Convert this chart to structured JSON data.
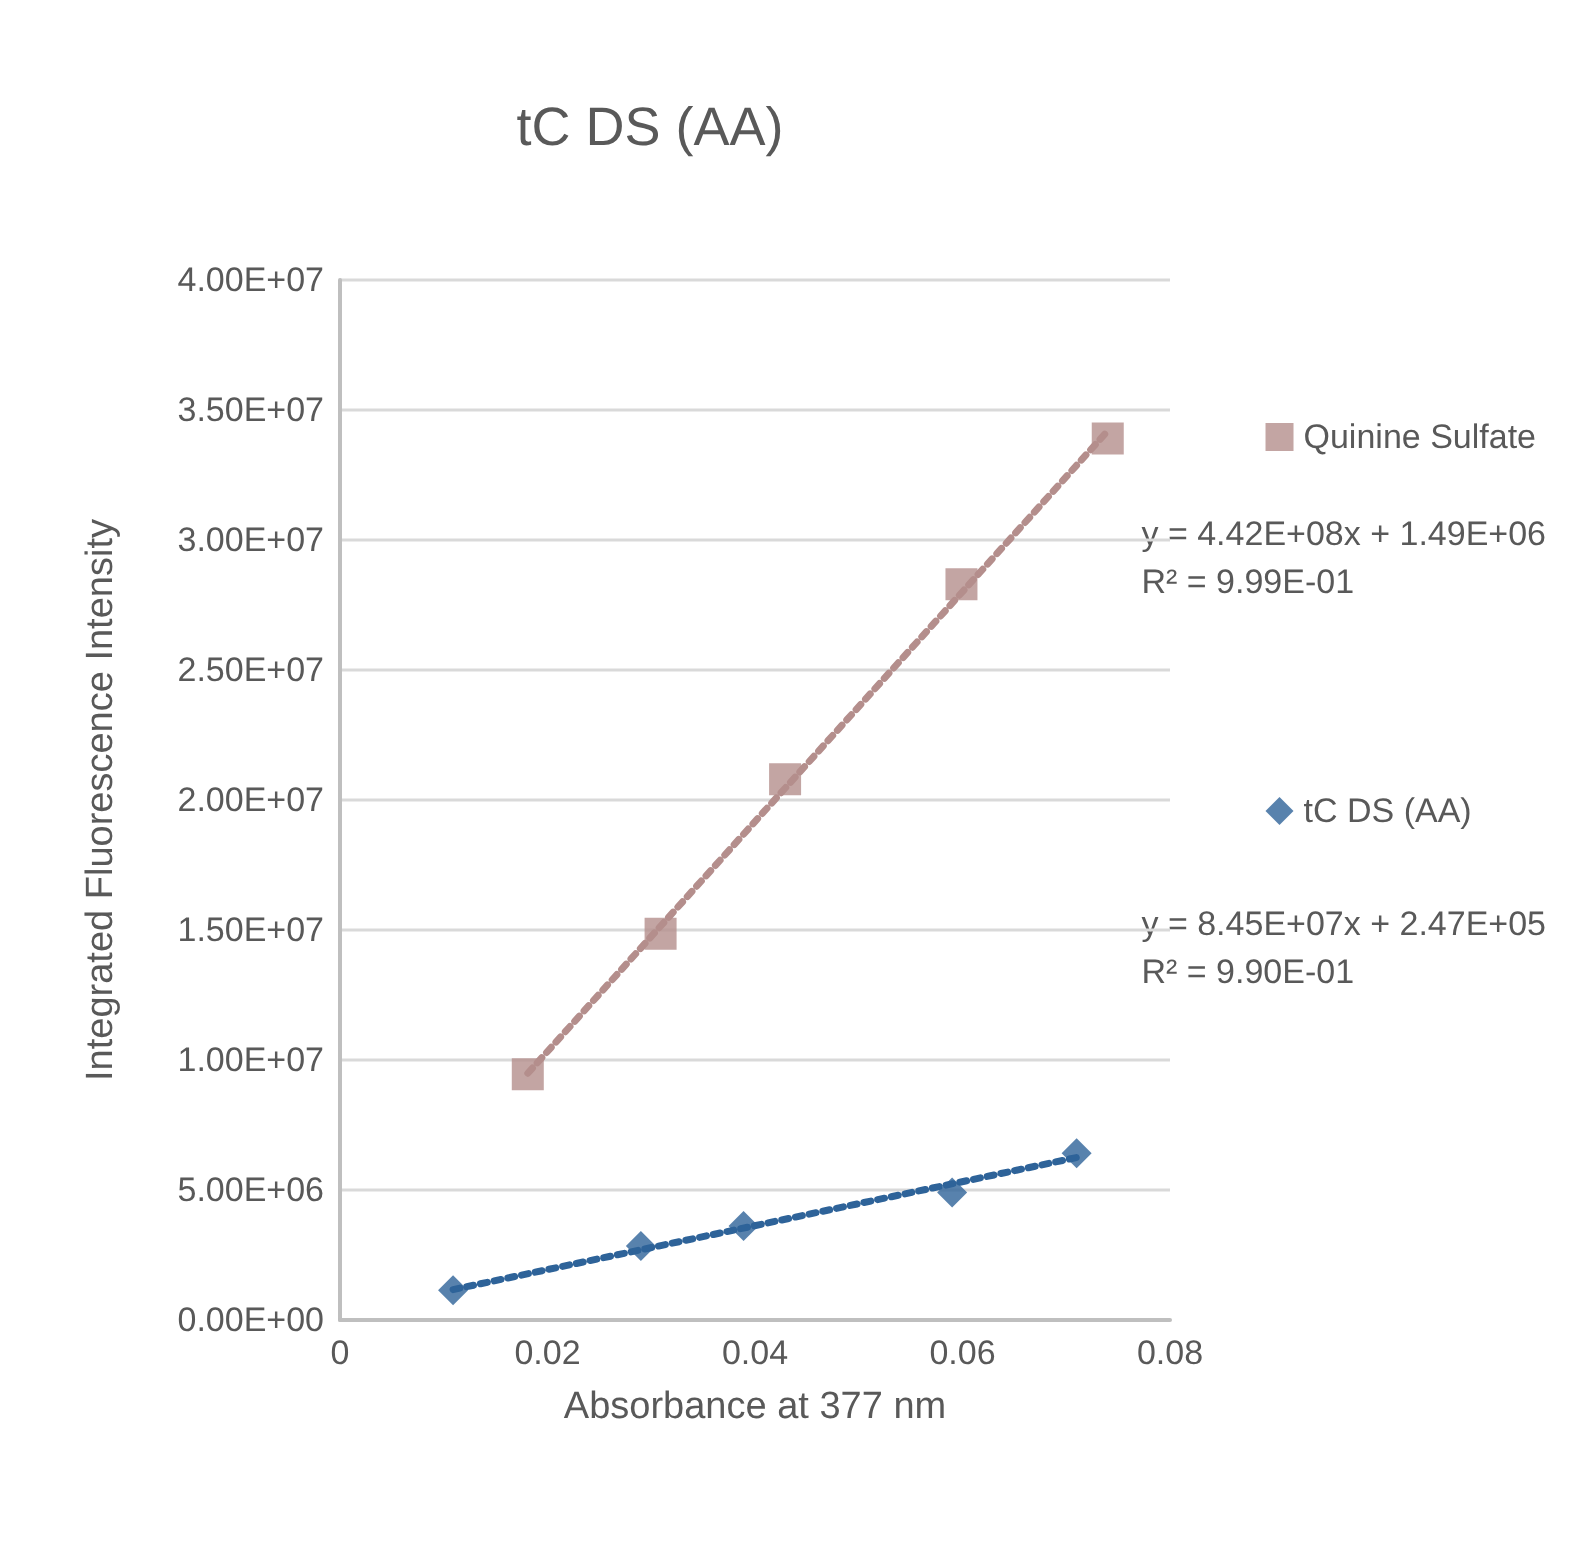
{
  "chart_data": {
    "type": "scatter",
    "title": "tC DS (AA)",
    "xlabel": "Absorbance at 377 nm",
    "ylabel": "Integrated Fluorescence Intensity",
    "series": [
      {
        "name": "Quinine Sulfate",
        "color": "#b48e8c",
        "marker": "square",
        "x": [
          0.0181,
          0.0309,
          0.0429,
          0.0599,
          0.074
        ],
        "values": [
          9450000.0,
          14860000.0,
          20800000.0,
          28300000.0,
          33900000.0
        ]
      },
      {
        "type": "line",
        "color": "#b48e8c",
        "marker": "none",
        "line_style": "dotted",
        "x": [
          0.0181,
          0.074
        ],
        "values": [
          9490000.0,
          34200000.0
        ]
      },
      {
        "name": "tC DS (AA)",
        "color": "#2e6399",
        "marker": "diamond",
        "x": [
          0.0109,
          0.029,
          0.0389,
          0.059,
          0.071
        ],
        "values": [
          1140000.0,
          2850000.0,
          3620000.0,
          4900000.0,
          6410000.0
        ]
      },
      {
        "type": "line",
        "color": "#2e6399",
        "marker": "none",
        "line_style": "dotted",
        "x": [
          0.0109,
          0.071
        ],
        "values": [
          1170000.0,
          6250000.0
        ]
      }
    ],
    "annotations": [
      "y = 4.42E+08x + 1.49E+06\nR² = 9.99E-01",
      "y = 8.45E+07x + 2.47E+05\nR² = 9.90E-01"
    ],
    "xlim": [
      0,
      0.08
    ],
    "xticks": [
      0,
      0.02,
      0.04,
      0.06,
      0.08
    ],
    "ylim": [
      0,
      40000000.0
    ],
    "yticks": [
      {
        "value": 0,
        "label": "0.00E+00"
      },
      {
        "value": 5000000.0,
        "label": "5.00E+06"
      },
      {
        "value": 10000000.0,
        "label": "1.00E+07"
      },
      {
        "value": 15000000.0,
        "label": "1.50E+07"
      },
      {
        "value": 20000000.0,
        "label": "2.00E+07"
      },
      {
        "value": 25000000.0,
        "label": "2.50E+07"
      },
      {
        "value": 30000000.0,
        "label": "3.00E+07"
      },
      {
        "value": 35000000.0,
        "label": "3.50E+07"
      },
      {
        "value": 40000000.0,
        "label": "4.00E+07"
      }
    ],
    "grid": "y",
    "legend": "right"
  }
}
